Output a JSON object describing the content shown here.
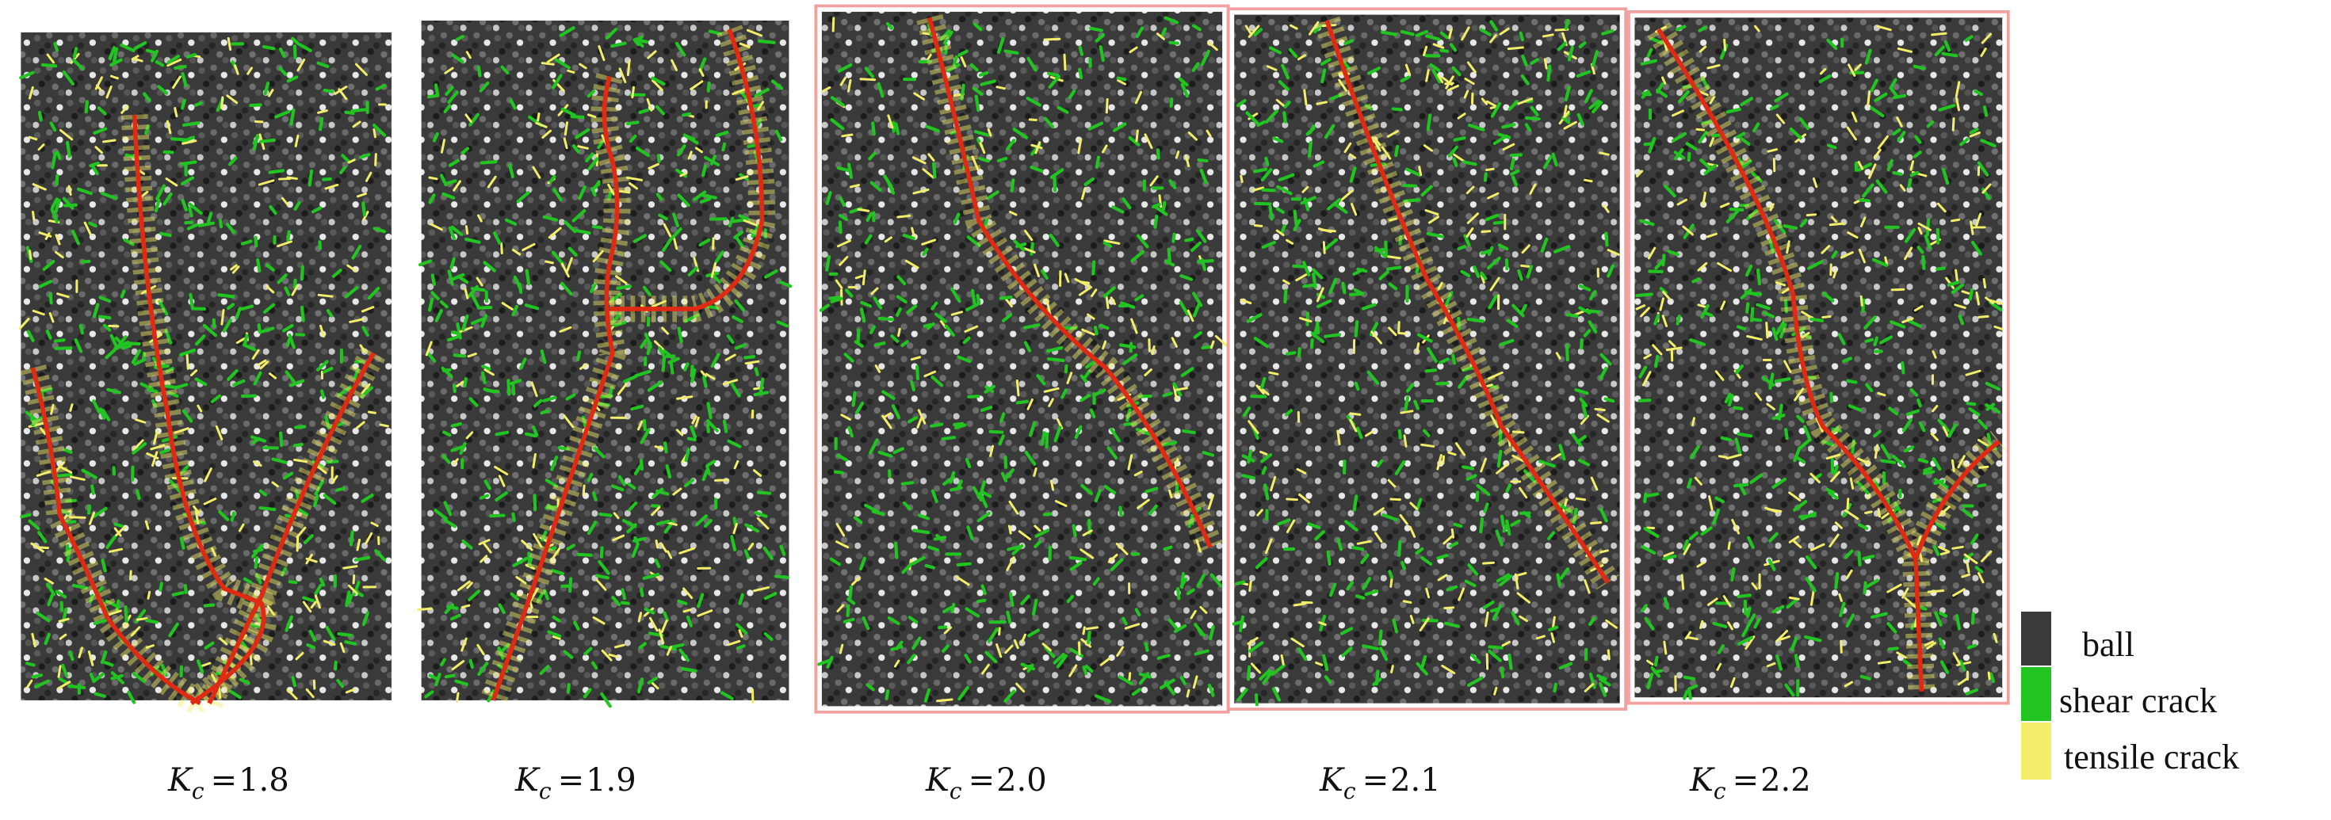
{
  "colors": {
    "ball": "#3a3a3a",
    "ball_light": "#e8e8e8",
    "shear_crack": "#22c422",
    "tensile_crack": "#f2ee6a",
    "fracture_line": "#e02a14",
    "frame": "#f2a0a0"
  },
  "panels": [
    {
      "symbol": "K",
      "subscript": "c",
      "equals": "=",
      "value": "1.8"
    },
    {
      "symbol": "K",
      "subscript": "c",
      "equals": "=",
      "value": "1.9"
    },
    {
      "symbol": "K",
      "subscript": "c",
      "equals": "=",
      "value": "2.0"
    },
    {
      "symbol": "K",
      "subscript": "c",
      "equals": "=",
      "value": "2.1"
    },
    {
      "symbol": "K",
      "subscript": "c",
      "equals": "=",
      "value": "2.2"
    }
  ],
  "legend": {
    "items": [
      {
        "label": "ball",
        "color": "#3a3a3a"
      },
      {
        "label": "shear crack",
        "color": "#22c422"
      },
      {
        "label": "tensile crack",
        "color": "#f2ee6a"
      }
    ]
  }
}
